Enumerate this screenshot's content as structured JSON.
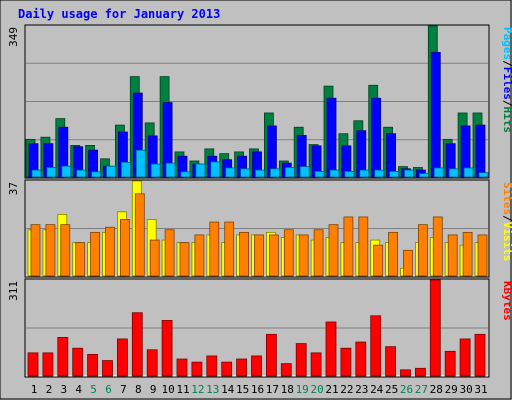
{
  "chart_data": {
    "type": "bar",
    "title": "Daily usage for January 2013",
    "days": [
      "1",
      "2",
      "3",
      "4",
      "5",
      "6",
      "7",
      "8",
      "9",
      "10",
      "11",
      "12",
      "13",
      "14",
      "15",
      "16",
      "17",
      "18",
      "19",
      "20",
      "21",
      "22",
      "23",
      "24",
      "25",
      "26",
      "27",
      "28",
      "29",
      "30",
      "31"
    ],
    "weekend_days": [
      "5",
      "6",
      "12",
      "13",
      "19",
      "20",
      "26",
      "27"
    ],
    "panels": [
      {
        "id": "top",
        "ymax_label": "349",
        "ymax": 349,
        "right_label": [
          "Pages",
          "/",
          "Files",
          "/",
          "Hits"
        ],
        "right_label_colors": [
          "#00c0ff",
          "#000000",
          "#0000ff",
          "#000000",
          "#008040"
        ],
        "series": [
          {
            "name": "Hits",
            "color": "#008040",
            "values": [
              87,
              92,
              135,
              73,
              73,
              42,
              120,
              232,
              125,
              232,
              58,
              37,
              65,
              54,
              58,
              65,
              148,
              37,
              115,
              75,
              210,
              100,
              130,
              212,
              115,
              24,
              22,
              349,
              87,
              148,
              148
            ]
          },
          {
            "name": "Files",
            "color": "#0000ff",
            "values": [
              77,
              77,
              115,
              70,
              62,
              25,
              104,
              194,
              95,
              172,
              48,
              30,
              48,
              40,
              48,
              58,
              118,
              32,
              96,
              72,
              182,
              72,
              107,
              182,
              100,
              19,
              16,
              288,
              77,
              118,
              120
            ]
          },
          {
            "name": "Pages",
            "color": "#00c0ff",
            "values": [
              16,
              22,
              25,
              16,
              12,
              25,
              34,
              62,
              30,
              32,
              12,
              30,
              35,
              21,
              19,
              16,
              19,
              22,
              24,
              13,
              16,
              13,
              16,
              16,
              13,
              16,
              8,
              21,
              19,
              21,
              10
            ]
          }
        ]
      },
      {
        "id": "middle",
        "ymax_label": "37",
        "ymax": 37,
        "right_label": [
          "Sites",
          "/",
          "Visits"
        ],
        "right_label_colors": [
          "#ff8000",
          "#000000",
          "#ffff00"
        ],
        "series": [
          {
            "name": "Visits",
            "color": "#ffff00",
            "values": [
              18,
              18,
              24,
              13,
              13,
              17,
              25,
              37,
              22,
              14,
              13,
              13,
              16,
              13,
              16,
              16,
              17,
              15,
              16,
              14,
              15,
              13,
              13,
              14,
              13,
              3,
              13,
              15,
              13,
              12,
              13
            ]
          },
          {
            "name": "Sites",
            "color": "#ff8000",
            "values": [
              20,
              20,
              20,
              13,
              17,
              19,
              22,
              32,
              14,
              18,
              13,
              16,
              21,
              21,
              17,
              16,
              16,
              18,
              16,
              18,
              20,
              23,
              23,
              12,
              17,
              10,
              20,
              23,
              16,
              17,
              16
            ]
          }
        ]
      },
      {
        "id": "bottom",
        "ymax_label": "311",
        "ymax": 311,
        "right_label": [
          "KBytes"
        ],
        "right_label_colors": [
          "#ff0000"
        ],
        "series": [
          {
            "name": "KBytes",
            "color": "#ff0000",
            "values": [
              75,
              75,
              125,
              90,
              70,
              50,
              120,
              205,
              85,
              180,
              55,
              45,
              65,
              45,
              55,
              65,
              135,
              40,
              105,
              75,
              175,
              90,
              110,
              195,
              95,
              20,
              25,
              311,
              80,
              120,
              135
            ]
          }
        ]
      }
    ]
  }
}
